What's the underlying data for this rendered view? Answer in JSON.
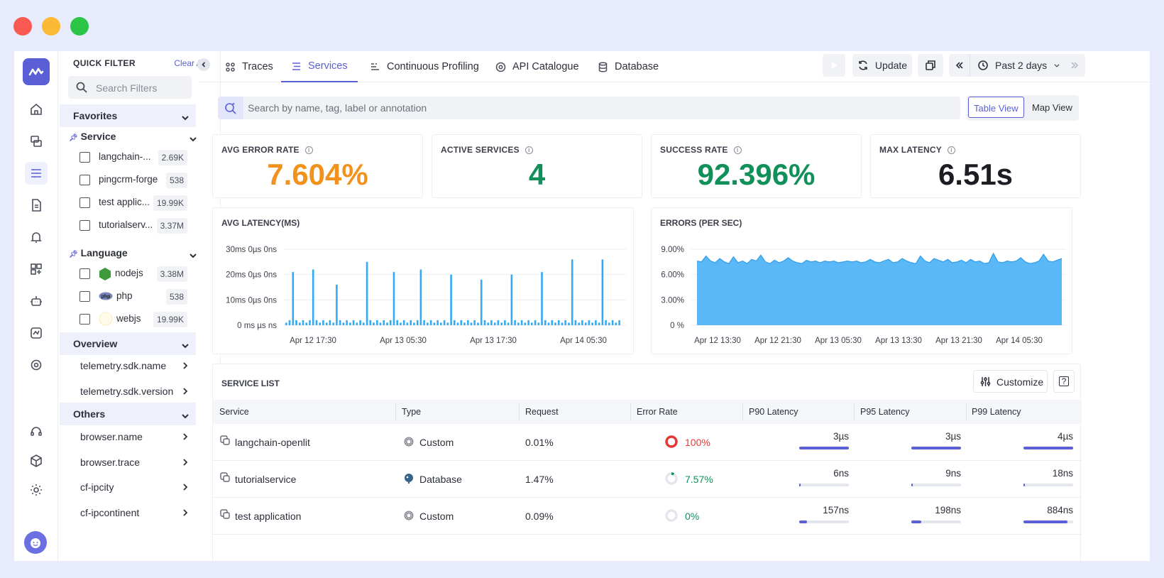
{
  "colors": {
    "accent": "#5b5fd6",
    "orange": "#f0921c",
    "green": "#11905a",
    "red": "#e53935",
    "chart_blue": "#34aaf2"
  },
  "quick_filter": {
    "title": "QUICK FILTER",
    "clear_all": "Clear All",
    "search_placeholder": "Search Filters",
    "favorites": "Favorites",
    "service_group": {
      "label": "Service",
      "items": [
        {
          "label": "langchain-...",
          "count": "2.69K"
        },
        {
          "label": "pingcrm-forge",
          "count": "538"
        },
        {
          "label": "test applic...",
          "count": "19.99K"
        },
        {
          "label": "tutorialserv...",
          "count": "3.37M"
        }
      ]
    },
    "language_group": {
      "label": "Language",
      "items": [
        {
          "label": "nodejs",
          "count": "3.38M",
          "icon": "nodejs-icon"
        },
        {
          "label": "php",
          "count": "538",
          "icon": "php-icon"
        },
        {
          "label": "webjs",
          "count": "19.99K",
          "icon": "webjs-icon"
        }
      ]
    },
    "overview": {
      "label": "Overview",
      "items": [
        "telemetry.sdk.name",
        "telemetry.sdk.version"
      ]
    },
    "others": {
      "label": "Others",
      "items": [
        "browser.name",
        "browser.trace",
        "cf-ipcity",
        "cf-ipcontinent"
      ]
    }
  },
  "tabs": [
    {
      "label": "Traces",
      "icon": "traces-icon"
    },
    {
      "label": "Services",
      "icon": "services-icon",
      "active": true
    },
    {
      "label": "Continuous Profiling",
      "icon": "profiling-icon"
    },
    {
      "label": "API Catalogue",
      "icon": "api-icon"
    },
    {
      "label": "Database",
      "icon": "database-icon"
    }
  ],
  "toolbar": {
    "update": "Update",
    "time_range": "Past 2 days"
  },
  "search": {
    "placeholder": "Search by name, tag, label or annotation"
  },
  "view_toggle": {
    "table": "Table View",
    "map": "Map View",
    "active": "Table View"
  },
  "kpis": [
    {
      "label": "AVG ERROR RATE",
      "value": "7.604%",
      "color": "#f0921c"
    },
    {
      "label": "ACTIVE SERVICES",
      "value": "4",
      "color": "#11905a"
    },
    {
      "label": "SUCCESS RATE",
      "value": "92.396%",
      "color": "#11905a"
    },
    {
      "label": "MAX LATENCY",
      "value": "6.51s",
      "color": "#1c1d22"
    }
  ],
  "chart_data": [
    {
      "type": "bar",
      "title": "AVG LATENCY(MS)",
      "yticks": [
        "30ms 0µs 0ns",
        "20ms 0µs 0ns",
        "10ms 0µs 0ns",
        "0 ms µs ns"
      ],
      "ylim": [
        0,
        30
      ],
      "xticks": [
        "Apr 12 17:30",
        "Apr 13 05:30",
        "Apr 13 17:30",
        "Apr 14 05:30"
      ],
      "values": [
        1,
        2,
        21,
        2,
        1,
        2,
        1,
        2,
        22,
        2,
        1,
        2,
        1,
        2,
        1,
        16,
        2,
        1,
        2,
        1,
        2,
        1,
        2,
        1,
        25,
        2,
        1,
        2,
        1,
        2,
        1,
        2,
        21,
        2,
        1,
        2,
        1,
        2,
        1,
        2,
        22,
        2,
        1,
        2,
        1,
        2,
        1,
        2,
        1,
        20,
        2,
        1,
        2,
        1,
        2,
        1,
        2,
        1,
        18,
        2,
        1,
        2,
        1,
        2,
        1,
        2,
        1,
        20,
        2,
        1,
        2,
        1,
        2,
        1,
        2,
        1,
        21,
        2,
        1,
        2,
        1,
        2,
        1,
        2,
        1,
        26,
        2,
        1,
        2,
        1,
        2,
        1,
        2,
        1,
        26,
        2,
        1,
        2,
        1,
        2
      ]
    },
    {
      "type": "area",
      "title": "ERRORS (PER SEC)",
      "yticks": [
        "9.00%",
        "6.00%",
        "3.00%",
        "0 %"
      ],
      "ylim": [
        0,
        9
      ],
      "xticks": [
        "Apr 12 13:30",
        "Apr 12 21:30",
        "Apr 13 05:30",
        "Apr 13 13:30",
        "Apr 13 21:30",
        "Apr 14 05:30"
      ],
      "values": [
        7.6,
        7.5,
        8.2,
        7.6,
        7.4,
        7.9,
        7.5,
        7.3,
        8.1,
        7.4,
        7.6,
        7.3,
        7.8,
        7.6,
        8.3,
        7.5,
        7.3,
        7.7,
        7.4,
        7.6,
        8.0,
        7.6,
        7.4,
        7.3,
        7.7,
        7.5,
        7.6,
        7.4,
        7.6,
        7.5,
        7.6,
        7.4,
        7.5,
        7.6,
        7.5,
        7.6,
        7.4,
        7.5,
        7.8,
        7.5,
        7.4,
        7.6,
        7.8,
        7.4,
        7.5,
        7.9,
        7.6,
        7.4,
        7.3,
        8.2,
        7.6,
        7.4,
        7.9,
        7.7,
        7.5,
        7.8,
        7.4,
        7.5,
        7.7,
        7.4,
        7.8,
        7.5,
        7.6,
        7.3,
        7.4,
        8.5,
        7.5,
        7.4,
        7.6,
        7.5,
        7.6,
        8.0,
        7.5,
        7.3,
        7.4,
        7.6,
        8.4,
        7.6,
        7.5,
        7.7,
        7.9
      ]
    }
  ],
  "service_list": {
    "title": "SERVICE LIST",
    "customize": "Customize",
    "help": "?",
    "columns": [
      "Service",
      "Type",
      "Request",
      "Error Rate",
      "P90 Latency",
      "P95 Latency",
      "P99 Latency"
    ],
    "rows": [
      {
        "service": "langchain-openlit",
        "type": "Custom",
        "type_icon": "gear-icon",
        "request": "0.01%",
        "error_rate": "100%",
        "error_pct": 100,
        "p90": "3µs",
        "p95": "3µs",
        "p99": "4µs",
        "p90_frac": 1.0,
        "p95_frac": 1.0,
        "p99_frac": 1.0,
        "status_color": "#e53935"
      },
      {
        "service": "tutorialservice",
        "type": "Database",
        "type_icon": "postgres-icon",
        "request": "1.47%",
        "error_rate": "7.57%",
        "error_pct": 7.57,
        "p90": "6ns",
        "p95": "9ns",
        "p99": "18ns",
        "p90_frac": 0.02,
        "p95_frac": 0.02,
        "p99_frac": 0.02,
        "status_color": "#11905a"
      },
      {
        "service": "test application",
        "type": "Custom",
        "type_icon": "gear-icon",
        "request": "0.09%",
        "error_rate": "0%",
        "error_pct": 0,
        "p90": "157ns",
        "p95": "198ns",
        "p99": "884ns",
        "p90_frac": 0.15,
        "p95_frac": 0.2,
        "p99_frac": 0.88,
        "status_color": "#11905a"
      }
    ]
  }
}
